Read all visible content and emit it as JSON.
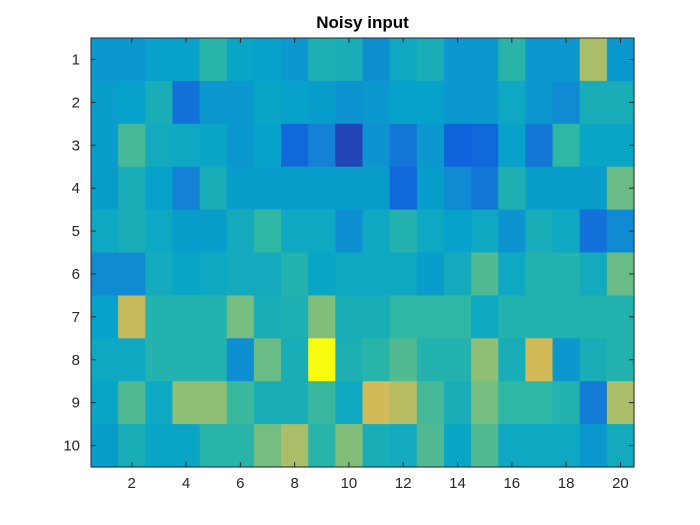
{
  "chart_data": {
    "type": "heatmap",
    "title": "Noisy input",
    "xlabel": "",
    "ylabel": "",
    "colormap": "parula",
    "color_range": [
      0,
      1
    ],
    "rows": 10,
    "cols": 20,
    "xlim": [
      0.5,
      20.5
    ],
    "ylim": [
      0.5,
      10.5
    ],
    "y_direction": "reversed",
    "xticks": [
      2,
      4,
      6,
      8,
      10,
      12,
      14,
      16,
      18,
      20
    ],
    "yticks": [
      1,
      2,
      3,
      4,
      5,
      6,
      7,
      8,
      9,
      10
    ],
    "grid": false,
    "legend": "none",
    "values": [
      [
        0.4,
        0.4,
        0.44,
        0.44,
        0.58,
        0.46,
        0.44,
        0.4,
        0.54,
        0.52,
        0.36,
        0.48,
        0.52,
        0.4,
        0.4,
        0.58,
        0.4,
        0.4,
        0.8,
        0.4
      ],
      [
        0.42,
        0.44,
        0.52,
        0.24,
        0.4,
        0.4,
        0.46,
        0.44,
        0.42,
        0.38,
        0.4,
        0.44,
        0.44,
        0.4,
        0.4,
        0.48,
        0.4,
        0.34,
        0.52,
        0.52
      ],
      [
        0.42,
        0.64,
        0.5,
        0.48,
        0.46,
        0.4,
        0.44,
        0.2,
        0.3,
        0.08,
        0.38,
        0.26,
        0.4,
        0.18,
        0.2,
        0.44,
        0.26,
        0.6,
        0.46,
        0.46
      ],
      [
        0.42,
        0.52,
        0.44,
        0.3,
        0.52,
        0.42,
        0.42,
        0.42,
        0.42,
        0.42,
        0.42,
        0.2,
        0.42,
        0.34,
        0.26,
        0.54,
        0.42,
        0.42,
        0.42,
        0.7
      ],
      [
        0.48,
        0.52,
        0.48,
        0.42,
        0.42,
        0.5,
        0.6,
        0.48,
        0.48,
        0.36,
        0.48,
        0.56,
        0.48,
        0.44,
        0.48,
        0.38,
        0.52,
        0.48,
        0.24,
        0.34
      ],
      [
        0.34,
        0.34,
        0.5,
        0.46,
        0.48,
        0.5,
        0.5,
        0.56,
        0.46,
        0.48,
        0.48,
        0.48,
        0.42,
        0.5,
        0.66,
        0.48,
        0.56,
        0.56,
        0.5,
        0.7
      ],
      [
        0.44,
        0.84,
        0.56,
        0.56,
        0.56,
        0.72,
        0.52,
        0.54,
        0.74,
        0.52,
        0.52,
        0.6,
        0.6,
        0.6,
        0.48,
        0.56,
        0.56,
        0.56,
        0.56,
        0.56
      ],
      [
        0.48,
        0.48,
        0.56,
        0.56,
        0.56,
        0.36,
        0.7,
        0.52,
        1.0,
        0.54,
        0.58,
        0.66,
        0.56,
        0.56,
        0.76,
        0.52,
        0.86,
        0.4,
        0.52,
        0.56
      ],
      [
        0.46,
        0.66,
        0.48,
        0.76,
        0.76,
        0.62,
        0.52,
        0.52,
        0.62,
        0.48,
        0.86,
        0.82,
        0.64,
        0.52,
        0.72,
        0.6,
        0.6,
        0.56,
        0.28,
        0.8
      ],
      [
        0.42,
        0.52,
        0.46,
        0.46,
        0.58,
        0.58,
        0.72,
        0.8,
        0.58,
        0.74,
        0.52,
        0.5,
        0.66,
        0.46,
        0.66,
        0.48,
        0.48,
        0.48,
        0.4,
        0.5
      ]
    ]
  }
}
